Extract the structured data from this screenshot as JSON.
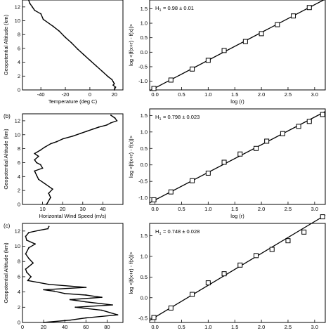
{
  "chart_data": [
    {
      "panel_label": "",
      "type": "line",
      "xlabel": "Temperature (deg C)",
      "ylabel": "Geopotential Altitude (km)",
      "xlim": [
        -55,
        27
      ],
      "ylim": [
        0,
        13
      ],
      "xticks": [
        -40,
        -20,
        0,
        20
      ],
      "yticks": [
        0,
        2,
        4,
        6,
        8,
        10,
        12
      ],
      "series": [
        {
          "x": [
            -50,
            -49,
            -47,
            -45,
            -40,
            -38,
            -30,
            -25,
            -20,
            -15,
            -10,
            -5,
            0,
            5,
            10,
            15,
            18,
            19,
            20,
            19,
            21,
            20
          ],
          "y": [
            13,
            12.5,
            12,
            11.5,
            11,
            10.2,
            9.2,
            8.5,
            7.6,
            6.8,
            5.9,
            5.1,
            4.3,
            3.5,
            2.7,
            1.9,
            1.5,
            1.2,
            0.9,
            0.7,
            0.4,
            0
          ]
        }
      ]
    },
    {
      "panel_label": "",
      "type": "scatter",
      "annotation_label": "H",
      "annotation_sub": "1",
      "annotation_value": "= 0.98 ± 0.01",
      "xlabel": "log (r)",
      "ylabel": "log <|f(x+r) - f(x)|>",
      "xlim": [
        -0.1,
        3.2
      ],
      "ylim": [
        -1.3,
        1.8
      ],
      "xticks": [
        "0.0",
        "0.5",
        "1.0",
        "1.5",
        "2.0",
        "2.5",
        "3.0"
      ],
      "yticks": [
        "-1.0",
        "-0.5",
        "0.0",
        "0.5",
        "1.0",
        "1.5"
      ],
      "x": [
        -0.02,
        0.3,
        0.7,
        1.0,
        1.3,
        1.7,
        2.0,
        2.3,
        2.6,
        2.9
      ],
      "y": [
        -1.25,
        -0.96,
        -0.58,
        -0.28,
        0.06,
        0.37,
        0.64,
        0.95,
        1.25,
        1.54
      ],
      "fit_line": {
        "x": [
          -0.1,
          3.2
        ],
        "y": [
          -1.33,
          1.83
        ]
      }
    },
    {
      "panel_label": "(b)",
      "type": "line",
      "xlabel": "Horizontal Wind Speed   (m/s)",
      "ylabel": "Geopotential Altitude (km)",
      "xlim": [
        0,
        50
      ],
      "ylim": [
        0,
        13
      ],
      "xticks": [
        10,
        20,
        30,
        40
      ],
      "yticks": [
        0,
        2,
        4,
        6,
        8,
        10,
        12
      ],
      "series": [
        {
          "x": [
            12,
            14,
            13,
            15,
            11,
            8,
            7,
            6,
            10,
            9,
            7,
            6,
            8,
            6,
            9,
            11,
            14,
            17,
            20,
            25,
            29,
            32,
            35,
            38,
            42,
            44,
            47,
            46,
            44
          ],
          "y": [
            0,
            1.0,
            1.6,
            2.2,
            3.0,
            3.6,
            4.2,
            4.8,
            5.2,
            5.7,
            6.0,
            6.4,
            6.9,
            7.3,
            7.8,
            8.2,
            8.7,
            9.0,
            9.4,
            9.8,
            10.2,
            10.5,
            10.8,
            11.1,
            11.4,
            11.7,
            12.0,
            12.4,
            12.8
          ]
        }
      ]
    },
    {
      "panel_label": "",
      "type": "scatter",
      "annotation_label": "H",
      "annotation_sub": "1",
      "annotation_value": "= 0.798 ± 0.023",
      "xlabel": "log (r)",
      "ylabel": "log <|f(x+r) - f(x)|>",
      "xlim": [
        -0.1,
        3.2
      ],
      "ylim": [
        -1.2,
        1.7
      ],
      "xticks": [
        "0.0",
        "0.5",
        "1.0",
        "1.5",
        "2.0",
        "2.5",
        "3.0"
      ],
      "yticks": [
        "-1.0",
        "-0.5",
        "0.0",
        "0.5",
        "1.0",
        "1.5"
      ],
      "x": [
        -0.02,
        0.3,
        0.7,
        1.0,
        1.3,
        1.6,
        1.9,
        2.1,
        2.4,
        2.7,
        2.9,
        3.15
      ],
      "y": [
        -1.06,
        -0.82,
        -0.48,
        -0.25,
        0.08,
        0.33,
        0.5,
        0.72,
        0.95,
        1.17,
        1.32,
        1.53
      ],
      "fit_line": {
        "x": [
          -0.1,
          3.2
        ],
        "y": [
          -1.15,
          1.62
        ]
      }
    },
    {
      "panel_label": "(c)",
      "type": "line",
      "xlabel": "",
      "ylabel": "Geopotential Altitude (km)",
      "xlim": [
        0,
        95
      ],
      "ylim": [
        0,
        13
      ],
      "xticks": [
        0,
        20,
        40,
        60,
        80
      ],
      "yticks": [
        0,
        2,
        4,
        6,
        8,
        10,
        12
      ],
      "series": [
        {
          "x": [
            20,
            45,
            60,
            90,
            75,
            50,
            85,
            60,
            45,
            75,
            60,
            40,
            30,
            20,
            60,
            25,
            5,
            8,
            4,
            3,
            10,
            6,
            3,
            6,
            12,
            4,
            3,
            6,
            16,
            24,
            25
          ],
          "y": [
            0,
            0.3,
            0.6,
            1.0,
            1.6,
            2.0,
            2.3,
            2.7,
            3.0,
            3.3,
            3.6,
            3.8,
            4.1,
            4.3,
            4.6,
            5.0,
            5.5,
            6.0,
            6.6,
            7.0,
            7.8,
            8.4,
            9.0,
            9.8,
            10.3,
            10.8,
            11.3,
            11.8,
            12.1,
            12.3,
            12.6
          ]
        }
      ]
    },
    {
      "panel_label": "",
      "type": "scatter",
      "annotation_label": "H",
      "annotation_sub": "1",
      "annotation_value": "= 0.748 ± 0.028",
      "xlabel": "",
      "ylabel": "log <|f(x+r) - f(x)|>",
      "xlim": [
        -0.1,
        3.2
      ],
      "ylim": [
        -0.6,
        1.8
      ],
      "xticks": [
        "0.0",
        "0.5",
        "1.0",
        "1.5",
        "2.0",
        "2.5",
        "3.0"
      ],
      "yticks": [
        "-0.5",
        "0.0",
        "0.5",
        "1.0",
        "1.5"
      ],
      "x": [
        -0.02,
        0.3,
        0.7,
        1.0,
        1.3,
        1.6,
        1.9,
        2.2,
        2.5,
        2.8,
        3.15
      ],
      "y": [
        -0.48,
        -0.25,
        0.08,
        0.36,
        0.58,
        0.79,
        1.02,
        1.17,
        1.38,
        1.59,
        1.96
      ],
      "fit_line": {
        "x": [
          -0.1,
          3.2
        ],
        "y": [
          -0.55,
          2.0
        ]
      }
    }
  ]
}
